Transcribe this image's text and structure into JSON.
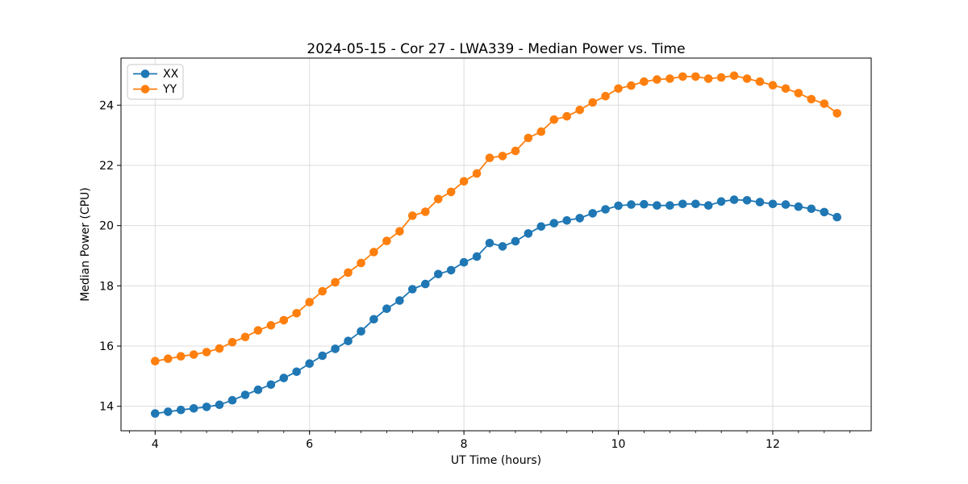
{
  "figure": {
    "title": "2024-05-15 - Cor 27 - LWA339 - Median Power vs. Time",
    "xlabel": "UT Time (hours)",
    "ylabel": "Median Power (CPU)"
  },
  "colors": {
    "series_xx": "#1f77b4",
    "series_yy": "#ff7f0e",
    "grid": "#dcdcdc",
    "spine": "#000000",
    "legend_border": "#c9c9c9",
    "background": "#ffffff"
  },
  "chart_data": {
    "type": "line",
    "title": "2024-05-15 - Cor 27 - LWA339 - Median Power vs. Time",
    "xlabel": "UT Time (hours)",
    "ylabel": "Median Power (CPU)",
    "xlim": [
      3.558,
      13.275
    ],
    "ylim": [
      13.188,
      25.563
    ],
    "xticks": [
      4,
      6,
      8,
      10,
      12
    ],
    "yticks": [
      14,
      16,
      18,
      20,
      22,
      24
    ],
    "x_minor_step": 0.33333,
    "grid": true,
    "legend_position": "upper-left",
    "marker": "o",
    "x": [
      4.0,
      4.167,
      4.333,
      4.5,
      4.667,
      4.833,
      5.0,
      5.167,
      5.333,
      5.5,
      5.667,
      5.833,
      6.0,
      6.167,
      6.333,
      6.5,
      6.667,
      6.833,
      7.0,
      7.167,
      7.333,
      7.5,
      7.667,
      7.833,
      8.0,
      8.167,
      8.333,
      8.5,
      8.667,
      8.833,
      9.0,
      9.167,
      9.333,
      9.5,
      9.667,
      9.833,
      10.0,
      10.167,
      10.333,
      10.5,
      10.667,
      10.833,
      11.0,
      11.167,
      11.333,
      11.5,
      11.667,
      11.833,
      12.0,
      12.167,
      12.333,
      12.5,
      12.667,
      12.833
    ],
    "series": [
      {
        "name": "XX",
        "color": "#1f77b4",
        "values": [
          13.76,
          13.82,
          13.88,
          13.93,
          13.98,
          14.05,
          14.2,
          14.38,
          14.55,
          14.72,
          14.94,
          15.15,
          15.42,
          15.68,
          15.91,
          16.17,
          16.49,
          16.89,
          17.24,
          17.51,
          17.89,
          18.06,
          18.39,
          18.52,
          18.78,
          18.97,
          19.42,
          19.31,
          19.48,
          19.74,
          19.97,
          20.08,
          20.17,
          20.25,
          20.41,
          20.54,
          20.66,
          20.7,
          20.71,
          20.67,
          20.67,
          20.72,
          20.72,
          20.67,
          20.8,
          20.86,
          20.84,
          20.78,
          20.72,
          20.7,
          20.63,
          20.56,
          20.45,
          20.28
        ]
      },
      {
        "name": "YY",
        "color": "#ff7f0e",
        "values": [
          15.5,
          15.58,
          15.66,
          15.72,
          15.8,
          15.92,
          16.13,
          16.3,
          16.52,
          16.69,
          16.86,
          17.09,
          17.46,
          17.82,
          18.12,
          18.44,
          18.76,
          19.12,
          19.49,
          19.81,
          20.33,
          20.46,
          20.88,
          21.12,
          21.47,
          21.73,
          22.25,
          22.31,
          22.48,
          22.91,
          23.12,
          23.52,
          23.63,
          23.84,
          24.09,
          24.3,
          24.55,
          24.65,
          24.78,
          24.85,
          24.88,
          24.95,
          24.95,
          24.88,
          24.92,
          24.98,
          24.88,
          24.78,
          24.66,
          24.55,
          24.4,
          24.2,
          24.05,
          23.73
        ]
      }
    ]
  }
}
